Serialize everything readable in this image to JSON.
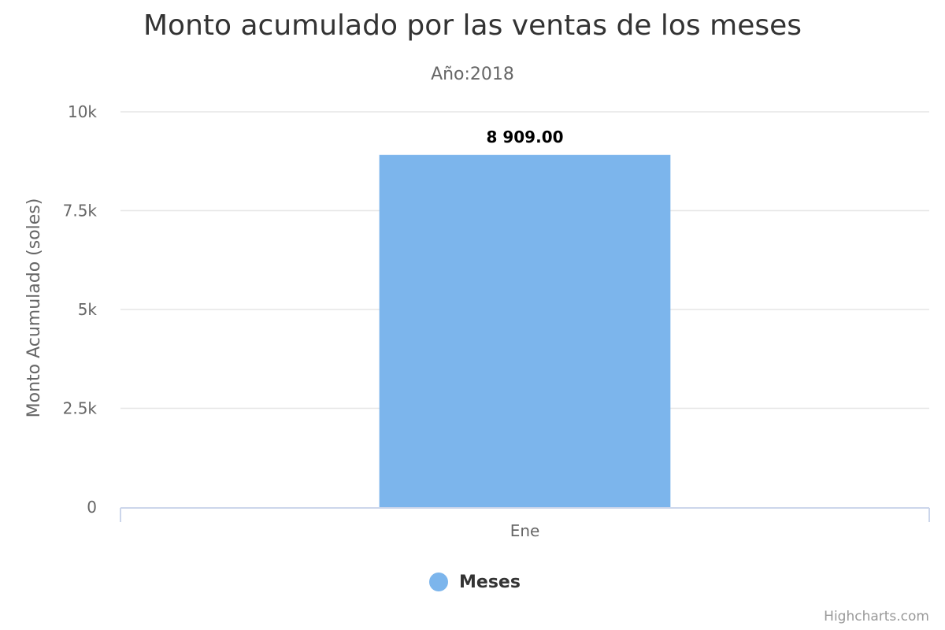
{
  "chart_data": {
    "type": "bar",
    "title": "Monto acumulado por las ventas de los meses",
    "subtitle": "Año:2018",
    "xlabel": "",
    "ylabel": "Monto Acumulado (soles)",
    "categories": [
      "Ene"
    ],
    "series": [
      {
        "name": "Meses",
        "values": [
          8909
        ],
        "data_labels": [
          "8 909.00"
        ],
        "color": "#7cb5ec"
      }
    ],
    "ylim": [
      0,
      10000
    ],
    "yticks": [
      0,
      2500,
      5000,
      7500,
      10000
    ],
    "ytick_labels": [
      "0",
      "2.5k",
      "5k",
      "7.5k",
      "10k"
    ],
    "grid": true,
    "legend_position": "bottom-center"
  },
  "credits": "Highcharts.com",
  "colors": {
    "gridline": "#e6e6e6",
    "axis_line": "#ccd6eb",
    "text": "#333333",
    "tick_text": "#666666"
  }
}
